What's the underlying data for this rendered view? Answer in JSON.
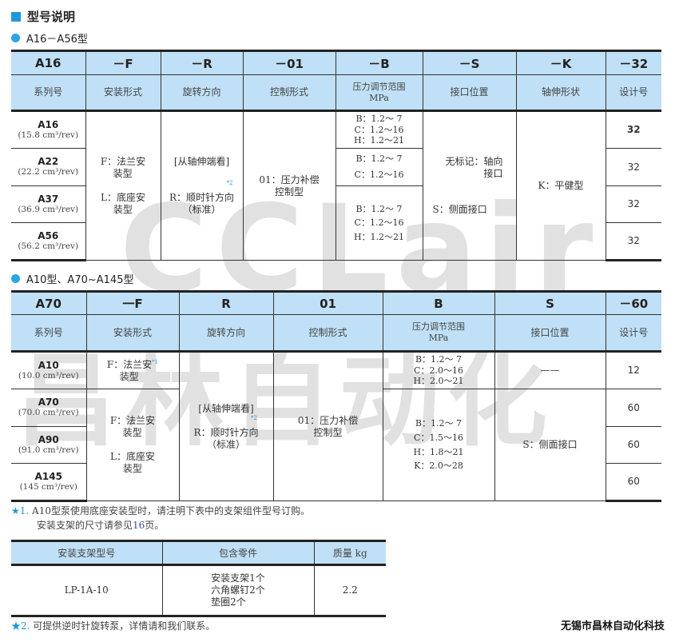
{
  "title": "型号说明",
  "section1": {
    "subtitle": "A16－A56型",
    "codes": [
      "A16",
      "－F",
      "－R",
      "－01",
      "－B",
      "－S",
      "－K",
      "－32"
    ],
    "labels": [
      "系列号",
      "安装形式",
      "旋转方向",
      "控制形式",
      "压力调节范围\nMPa",
      "接口位置",
      "轴伸形状",
      "设计号"
    ],
    "models": [
      {
        "name": "A16",
        "disp": "(15.8 cm³/rev)"
      },
      {
        "name": "A22",
        "disp": "(22.2 cm³/rev)"
      },
      {
        "name": "A37",
        "disp": "(36.9 cm³/rev)"
      },
      {
        "name": "A56",
        "disp": "(56.2 cm³/rev)"
      }
    ],
    "mount": [
      "F：法兰安\n　 装型",
      "L：底座安\n　 装型"
    ],
    "rotation": [
      "[从轴伸端看]",
      "R：顺时针方向",
      "（标准）"
    ],
    "rotation_note": "*2",
    "control": "01：压力补偿\n控制型",
    "pressure": [
      "B：1.2～ 7\nC：1.2～16\nH：1.2～21",
      "B：1.2～ 7\nC：1.2～16",
      "B：1.2～ 7\nC：1.2～16\nH：1.2～21"
    ],
    "port": [
      "无标记：轴向\n接口",
      "S：侧面接口"
    ],
    "shaft": "K：平健型",
    "design": [
      "32",
      "32",
      "32",
      "32"
    ]
  },
  "section2": {
    "subtitle": "A10型、A70~A145型",
    "codes": [
      "A70",
      "一F",
      "R",
      "01",
      "B",
      "S",
      "－60"
    ],
    "labels": [
      "系列号",
      "安装形式",
      "旋转方向",
      "控制形式",
      "压力调节范围\nMPa",
      "接口位置",
      "设计号"
    ],
    "models": [
      {
        "name": "A10",
        "disp": "(10.0 cm³/rev)"
      },
      {
        "name": "A70",
        "disp": "(70.0 cm³/rev)"
      },
      {
        "name": "A90",
        "disp": "(91.0 cm³/rev)"
      },
      {
        "name": "A145",
        "disp": "(145 cm³/rev)"
      }
    ],
    "mount_a10": "F：法兰安\n　 装型",
    "mount_a10_note": "*1",
    "mount": [
      "F：法兰安\n　 装型",
      "L：底座安\n　 装型"
    ],
    "rotation": [
      "[从轴伸端看]",
      "R：顺时针方向",
      "（标准）"
    ],
    "rotation_note": "*2",
    "control": "01：压力补偿\n控制型",
    "pressure": [
      "B：1.2～ 7\nC：2.0～16\nH：2.0～21",
      "B：1.2～ 7\nC：1.5～16\nH：1.8～21\nK：2.0～28"
    ],
    "port": [
      "——",
      "S：侧面接口"
    ],
    "design": [
      "12",
      "60",
      "60",
      "60"
    ]
  },
  "notes": {
    "n1_star": "★1.",
    "n1_line1": "A10型泵使用底座安装型时，请注明下表中的支架组件型号订购。",
    "n1_line2_a": "安装支架的尺寸请参见",
    "n1_page": "16",
    "n1_line2_b": "页。",
    "n2_star": "★2.",
    "n2": "可提供逆时针旋转泵，详情请和我们联系。"
  },
  "bracket": {
    "headers": [
      "安装支架型号",
      "包含零件",
      "质量 kg"
    ],
    "model": "LP-1A-10",
    "parts": "安装支架1个\n六角螺钉2个\n垫圈2个",
    "mass": "2.2"
  },
  "watermark": {
    "logo": "CCLair",
    "text": "昌林自动化"
  },
  "company": "无锡市昌林自动化科技",
  "colors": {
    "accent": "#1f97d8",
    "header_bg": "#bfe0f6"
  }
}
